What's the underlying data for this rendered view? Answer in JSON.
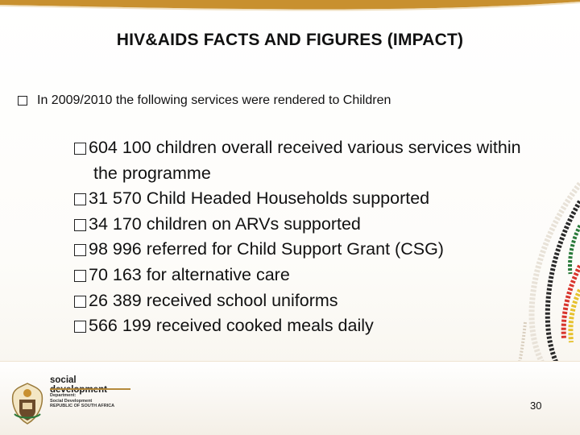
{
  "slide": {
    "title": "HIV&AIDS FACTS AND FIGURES (IMPACT)",
    "intro": "In 2009/2010 the following services were rendered to Children",
    "bullets": [
      "604 100 children overall received various services within",
      "31 570 Child Headed Households supported",
      "34 170 children on ARVs supported",
      "98 996 referred for Child Support Grant (CSG)",
      "70 163 for alternative care",
      "26 389 received school uniforms",
      "566 199 received cooked meals daily"
    ],
    "bullet_continuation": "the programme",
    "page_number": "30"
  },
  "footer": {
    "org_name": "social development",
    "dept_line1": "Department:",
    "dept_line2": "Social Development",
    "dept_line3": "REPUBLIC OF SOUTH AFRICA"
  },
  "colors": {
    "top_bar": "#c8902f",
    "accent_gold": "#b58a3c"
  },
  "icons": {
    "bullet": "checkbox-square-icon",
    "crest": "coat-of-arms-icon"
  }
}
